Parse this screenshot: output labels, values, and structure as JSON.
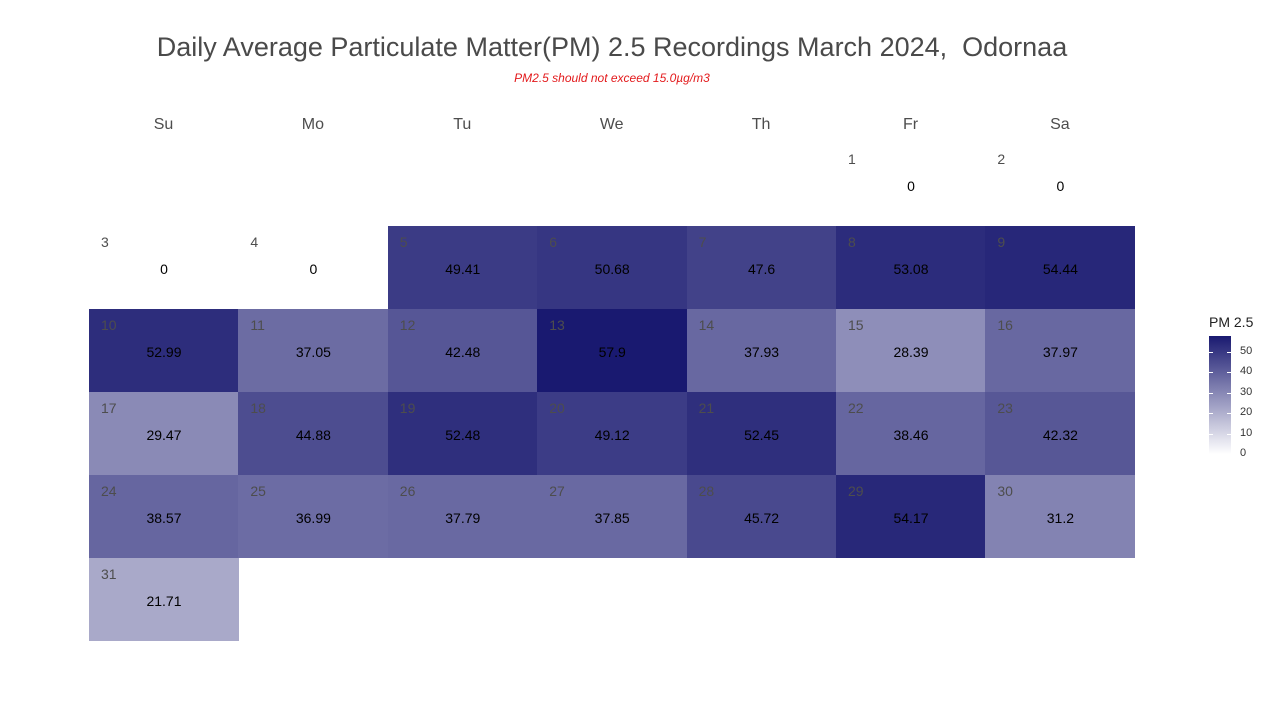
{
  "title": "Daily Average Particulate Matter(PM) 2.5 Recordings March 2024,  Odornaa",
  "subtitle": "PM2.5 should not exceed 15.0µg/m3",
  "weekdays": [
    "Su",
    "Mo",
    "Tu",
    "We",
    "Th",
    "Fr",
    "Sa"
  ],
  "legend": {
    "title": "PM 2.5",
    "ticks": [
      "50",
      "40",
      "30",
      "20",
      "10",
      "0"
    ]
  },
  "colors": {
    "low": "#ffffff",
    "high": "#191970",
    "subtitle": "#e31a1c"
  },
  "chart_data": {
    "type": "heatmap",
    "title": "Daily Average Particulate Matter(PM) 2.5 Recordings March 2024,  Odornaa",
    "subtitle": "PM2.5 should not exceed 15.0µg/m3",
    "month": "March 2024",
    "legend_title": "PM 2.5",
    "scale_range": [
      0,
      57.9
    ],
    "legend_ticks": [
      0,
      10,
      20,
      30,
      40,
      50
    ],
    "days": [
      {
        "day": 1,
        "weekday": "Fr",
        "week": 1,
        "value": 0,
        "label": "0"
      },
      {
        "day": 2,
        "weekday": "Sa",
        "week": 1,
        "value": 0,
        "label": "0"
      },
      {
        "day": 3,
        "weekday": "Su",
        "week": 2,
        "value": 0,
        "label": "0"
      },
      {
        "day": 4,
        "weekday": "Mo",
        "week": 2,
        "value": 0,
        "label": "0"
      },
      {
        "day": 5,
        "weekday": "Tu",
        "week": 2,
        "value": 49.41,
        "label": "49.41"
      },
      {
        "day": 6,
        "weekday": "We",
        "week": 2,
        "value": 50.68,
        "label": "50.68"
      },
      {
        "day": 7,
        "weekday": "Th",
        "week": 2,
        "value": 47.6,
        "label": "47.6"
      },
      {
        "day": 8,
        "weekday": "Fr",
        "week": 2,
        "value": 53.08,
        "label": "53.08"
      },
      {
        "day": 9,
        "weekday": "Sa",
        "week": 2,
        "value": 54.44,
        "label": "54.44"
      },
      {
        "day": 10,
        "weekday": "Su",
        "week": 3,
        "value": 52.99,
        "label": "52.99"
      },
      {
        "day": 11,
        "weekday": "Mo",
        "week": 3,
        "value": 37.05,
        "label": "37.05"
      },
      {
        "day": 12,
        "weekday": "Tu",
        "week": 3,
        "value": 42.48,
        "label": "42.48"
      },
      {
        "day": 13,
        "weekday": "We",
        "week": 3,
        "value": 57.9,
        "label": "57.9"
      },
      {
        "day": 14,
        "weekday": "Th",
        "week": 3,
        "value": 37.93,
        "label": "37.93"
      },
      {
        "day": 15,
        "weekday": "Fr",
        "week": 3,
        "value": 28.39,
        "label": "28.39"
      },
      {
        "day": 16,
        "weekday": "Sa",
        "week": 3,
        "value": 37.97,
        "label": "37.97"
      },
      {
        "day": 17,
        "weekday": "Su",
        "week": 4,
        "value": 29.47,
        "label": "29.47"
      },
      {
        "day": 18,
        "weekday": "Mo",
        "week": 4,
        "value": 44.88,
        "label": "44.88"
      },
      {
        "day": 19,
        "weekday": "Tu",
        "week": 4,
        "value": 52.48,
        "label": "52.48"
      },
      {
        "day": 20,
        "weekday": "We",
        "week": 4,
        "value": 49.12,
        "label": "49.12"
      },
      {
        "day": 21,
        "weekday": "Th",
        "week": 4,
        "value": 52.45,
        "label": "52.45"
      },
      {
        "day": 22,
        "weekday": "Fr",
        "week": 4,
        "value": 38.46,
        "label": "38.46"
      },
      {
        "day": 23,
        "weekday": "Sa",
        "week": 4,
        "value": 42.32,
        "label": "42.32"
      },
      {
        "day": 24,
        "weekday": "Su",
        "week": 5,
        "value": 38.57,
        "label": "38.57"
      },
      {
        "day": 25,
        "weekday": "Mo",
        "week": 5,
        "value": 36.99,
        "label": "36.99"
      },
      {
        "day": 26,
        "weekday": "Tu",
        "week": 5,
        "value": 37.79,
        "label": "37.79"
      },
      {
        "day": 27,
        "weekday": "We",
        "week": 5,
        "value": 37.85,
        "label": "37.85"
      },
      {
        "day": 28,
        "weekday": "Th",
        "week": 5,
        "value": 45.72,
        "label": "45.72"
      },
      {
        "day": 29,
        "weekday": "Fr",
        "week": 5,
        "value": 54.17,
        "label": "54.17"
      },
      {
        "day": 30,
        "weekday": "Sa",
        "week": 5,
        "value": 31.2,
        "label": "31.2"
      },
      {
        "day": 31,
        "weekday": "Su",
        "week": 6,
        "value": 21.71,
        "label": "21.71"
      }
    ]
  }
}
